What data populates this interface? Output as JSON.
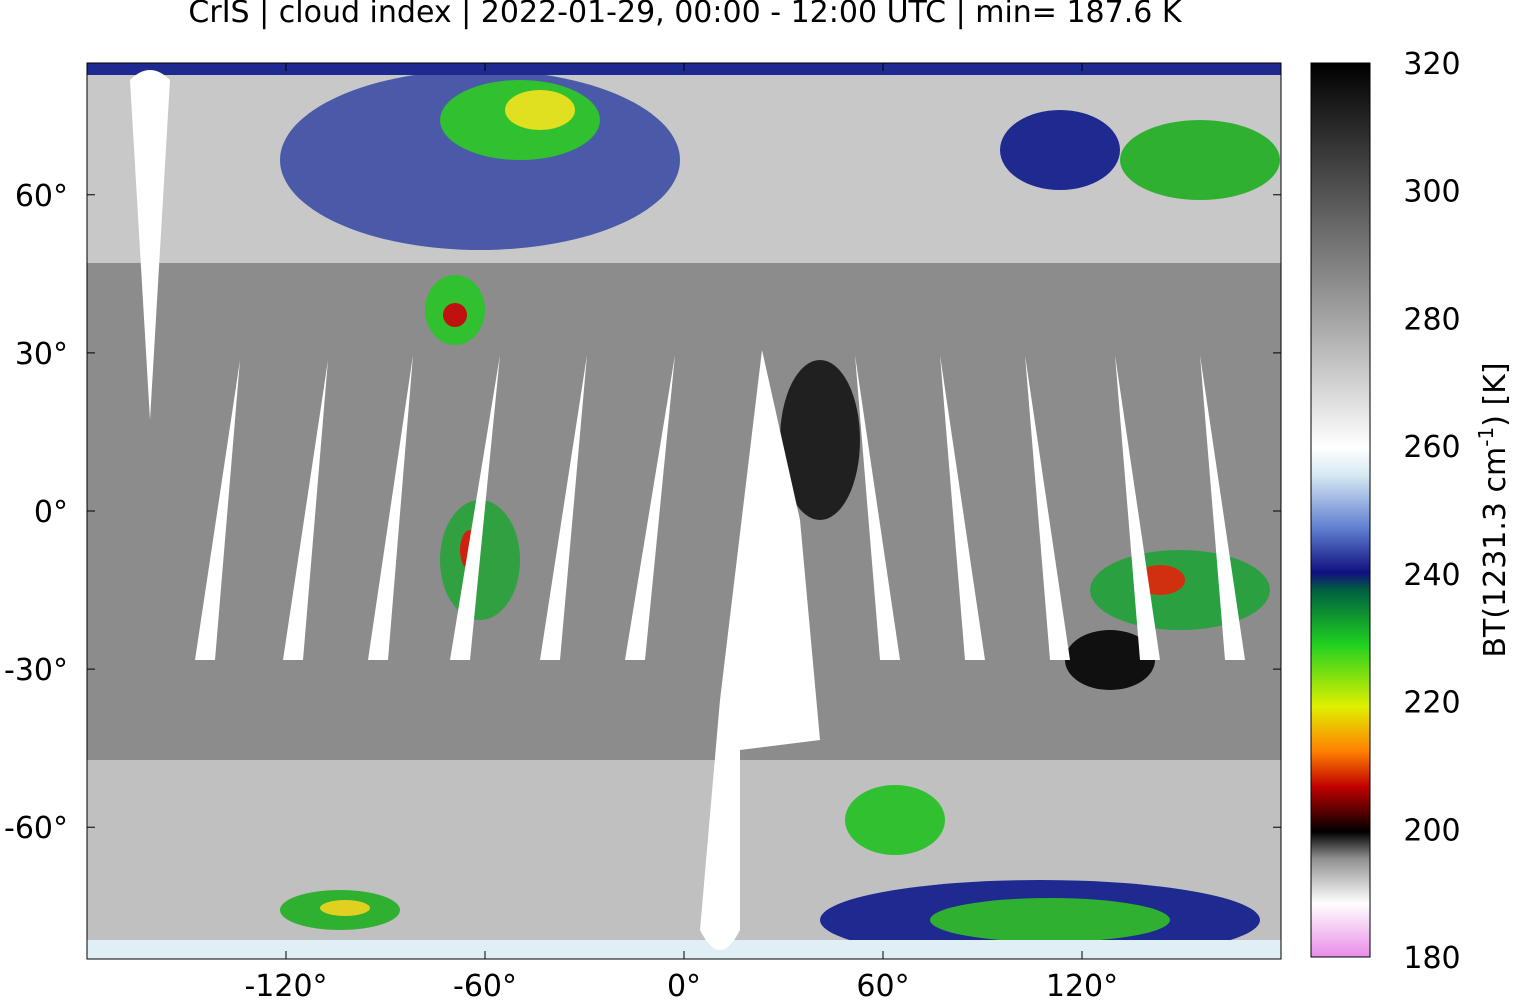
{
  "title": "CrIS | cloud index | 2022-01-29, 00:00 - 12:00 UTC | min= 187.6 K",
  "map": {
    "xlim": [
      -180,
      180
    ],
    "ylim": [
      -85,
      85
    ],
    "xticks": [
      {
        "value": -120,
        "label": "-120°"
      },
      {
        "value": -60,
        "label": "-60°"
      },
      {
        "value": 0,
        "label": "0°"
      },
      {
        "value": 60,
        "label": "60°"
      },
      {
        "value": 120,
        "label": "120°"
      }
    ],
    "yticks": [
      {
        "value": -60,
        "label": "-60°"
      },
      {
        "value": -30,
        "label": "-30°"
      },
      {
        "value": 0,
        "label": "0°"
      },
      {
        "value": 30,
        "label": "30°"
      },
      {
        "value": 60,
        "label": "60°"
      }
    ]
  },
  "colorbar": {
    "lim": [
      180,
      320
    ],
    "ticks": [
      180,
      200,
      220,
      240,
      260,
      280,
      300,
      320
    ],
    "label": {
      "main": "BT(1231.3 cm",
      "sup": "-1",
      "end": ") [K]"
    }
  }
}
